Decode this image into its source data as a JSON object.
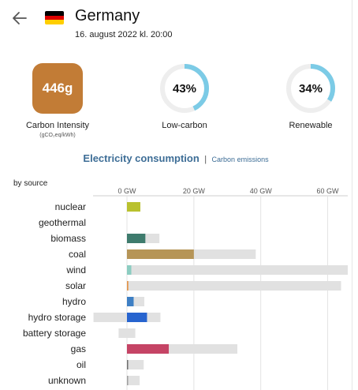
{
  "header": {
    "country": "Germany",
    "datetime": "16. august 2022 kl. 20:00",
    "flag_colors": [
      "#000000",
      "#dd0000",
      "#ffce00"
    ]
  },
  "metrics": {
    "carbon_intensity": {
      "value": "446g",
      "label": "Carbon Intensity",
      "unit": "(gCO₂eq/kWh)",
      "color": "#c27c36"
    },
    "low_carbon": {
      "value": "43%",
      "label": "Low-carbon",
      "fraction": 0.43
    },
    "renewable": {
      "value": "34%",
      "label": "Renewable",
      "fraction": 0.34
    },
    "gauge_color": "#7ccbe6",
    "gauge_track": "#eeeeee"
  },
  "tabs": {
    "active": "Electricity consumption",
    "separator": "|",
    "inactive": "Carbon emissions"
  },
  "breakdown": {
    "label": "by source",
    "ticks": [
      "0 GW",
      "20 GW",
      "40 GW",
      "60 GW"
    ]
  },
  "chart_data": {
    "type": "bar",
    "xlabel": "",
    "ylabel": "",
    "xlim": [
      -10,
      66
    ],
    "tick_values": [
      0,
      20,
      40,
      60
    ],
    "categories": [
      "nuclear",
      "geothermal",
      "biomass",
      "coal",
      "wind",
      "solar",
      "hydro",
      "hydro storage",
      "battery storage",
      "gas",
      "oil",
      "unknown"
    ],
    "series": [
      {
        "role": "production",
        "values": [
          4,
          0,
          5.5,
          20,
          1.3,
          0.4,
          2,
          6,
          0,
          12.5,
          0.2,
          0.3
        ]
      },
      {
        "role": "capacity",
        "values": [
          4,
          0,
          9.7,
          38.5,
          66,
          64,
          5.2,
          10,
          2.5,
          33,
          5,
          3.8
        ]
      },
      {
        "role": "storage-capacity",
        "values": [
          0,
          0,
          0,
          0,
          0,
          0,
          0,
          -10,
          -2.5,
          0,
          0,
          0
        ]
      }
    ],
    "colors": [
      "#b9c12e",
      "#ffffff",
      "#3e7b6d",
      "#b69557",
      "#8ccdc1",
      "#e3944a",
      "#3e7fc4",
      "#2764cf",
      "#9a9a9a",
      "#c54465",
      "#6f6f6f",
      "#a0a0a0"
    ]
  }
}
